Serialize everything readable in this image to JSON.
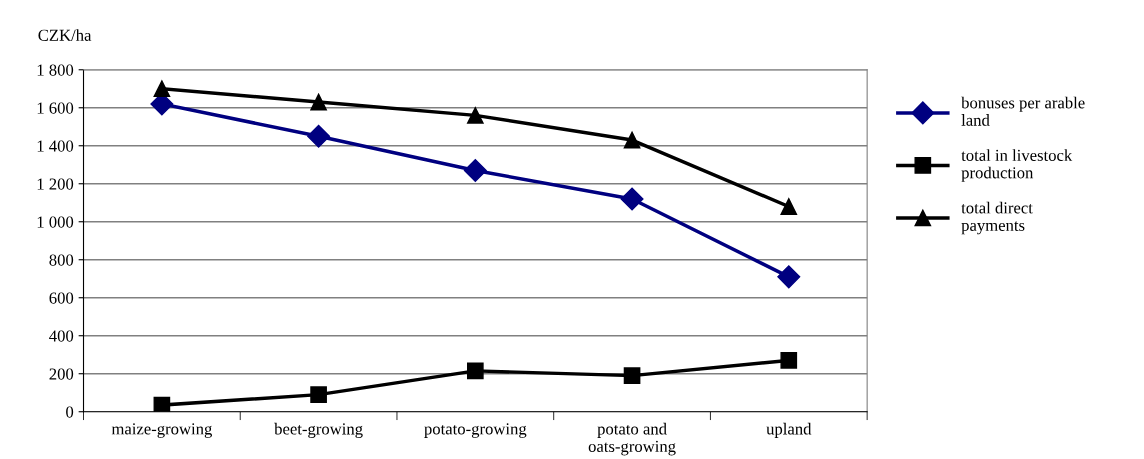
{
  "chart_data": {
    "type": "line",
    "ylabel": "CZK/ha",
    "categories": [
      "maize-growing",
      "beet-growing",
      "potato-growing",
      "potato and\noats-growing",
      "upland"
    ],
    "series": [
      {
        "name": "bonuses per arable land",
        "color": "#000080",
        "marker": "diamond",
        "values": [
          1620,
          1450,
          1270,
          1120,
          710
        ]
      },
      {
        "name": "total in livestock production",
        "color": "#000000",
        "marker": "square",
        "values": [
          35,
          90,
          215,
          190,
          270
        ]
      },
      {
        "name": "total direct payments",
        "color": "#000000",
        "marker": "triangle",
        "values": [
          1700,
          1630,
          1560,
          1430,
          1080
        ]
      }
    ],
    "ylim": [
      0,
      1800
    ],
    "yticks": [
      0,
      {
        "value": 200,
        "label": "200"
      },
      {
        "value": 400,
        "label": "400"
      },
      {
        "value": 600,
        "label": "600"
      },
      {
        "value": 800,
        "label": "800"
      },
      {
        "value": 1000,
        "label": "1 000"
      },
      {
        "value": 1200,
        "label": "1 200"
      },
      {
        "value": 1400,
        "label": "1 400"
      },
      {
        "value": 1600,
        "label": "1 600"
      },
      {
        "value": 1800,
        "label": "1 800"
      }
    ],
    "grid": "y",
    "legend": "right",
    "line_style": "solid"
  }
}
